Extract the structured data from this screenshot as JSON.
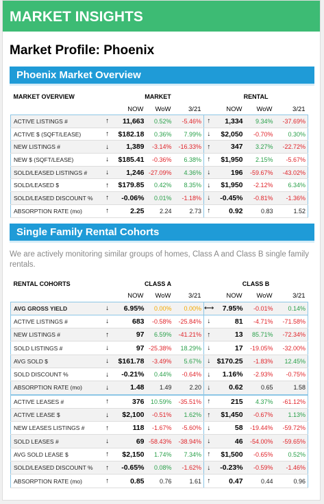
{
  "header": {
    "banner": "MARKET INSIGHTS",
    "title": "Market Profile: Phoenix"
  },
  "overview": {
    "section_title": "Phoenix Market Overview",
    "table_title": "MARKET OVERVIEW",
    "groups": [
      "MARKET",
      "RENTAL"
    ],
    "columns": [
      "NOW",
      "WoW",
      "3/21",
      "NOW",
      "WoW",
      "3/21"
    ],
    "rows": [
      [
        "ACTIVE LISTINGS #",
        "↑",
        "11,663",
        "0.52%",
        "-5.46%",
        "↑",
        "1,334",
        "9.34%",
        "-37.69%"
      ],
      [
        "ACTIVE $ (SQFT/LEASE)",
        "↑",
        "$182.18",
        "0.36%",
        "7.99%",
        "↓",
        "$2,050",
        "-0.70%",
        "0.30%"
      ],
      [
        "NEW LISTINGS #",
        "↓",
        "1,389",
        "-3.14%",
        "-16.33%",
        "↑",
        "347",
        "3.27%",
        "-22.72%"
      ],
      [
        "NEW $ (SQFT/LEASE)",
        "↓",
        "$185.41",
        "-0.36%",
        "6.38%",
        "↑",
        "$1,950",
        "2.15%",
        "-5.67%"
      ],
      [
        "SOLD/LEASED LISTINGS #",
        "↓",
        "1,246",
        "-27.09%",
        "4.36%",
        "↓",
        "196",
        "-59.67%",
        "-43.02%"
      ],
      [
        "SOLD/LEASED $",
        "↑",
        "$179.85",
        "0.42%",
        "8.35%",
        "↓",
        "$1,950",
        "-2.12%",
        "6.34%"
      ],
      [
        "SOLD/LEASED DISCOUNT %",
        "↑",
        "-0.06%",
        "0.01%",
        "-1.18%",
        "↓",
        "-0.45%",
        "-0.81%",
        "-1.36%"
      ],
      [
        "ABSORPTION RATE (mo)",
        "↑",
        "2.25",
        "2.24",
        "2.73",
        "↑",
        "0.92",
        "0.83",
        "1.52"
      ]
    ]
  },
  "cohorts": {
    "section_title": "Single Family Rental Cohorts",
    "intro": "We are actively monitoring similar groups of homes, Class A and Class B single family rentals.",
    "table_title": "RENTAL COHORTS",
    "groups": [
      "CLASS A",
      "CLASS B"
    ],
    "columns": [
      "NOW",
      "WoW",
      "3/21",
      "NOW",
      "WoW",
      "3/21"
    ],
    "rows": [
      [
        "AVG GROSS YIELD",
        "↓",
        "6.95%",
        "0.00%",
        "0.00%",
        "⟷",
        "7.95%",
        "-0.01%",
        "0.14%"
      ],
      [
        "ACTIVE LISTINGS #",
        "↓",
        "683",
        "-0.58%",
        "-25.84%",
        "↓",
        "81",
        "-4.71%",
        "-71.58%"
      ],
      [
        "NEW LISTINGS #",
        "↑",
        "97",
        "6.59%",
        "-41.21%",
        "↑",
        "13",
        "85.71%",
        "-72.34%"
      ],
      [
        "SOLD LISTINGS #",
        "↓",
        "97",
        "-25.38%",
        "18.29%",
        "↓",
        "17",
        "-19.05%",
        "-32.00%"
      ],
      [
        "AVG SOLD $",
        "↓",
        "$161.78",
        "-3.49%",
        "5.67%",
        "↓",
        "$170.25",
        "-1.83%",
        "12.45%"
      ],
      [
        "SOLD DISCOUNT %",
        "↓",
        "-0.21%",
        "0.44%",
        "-0.64%",
        "↓",
        "1.16%",
        "-2.93%",
        "-0.75%"
      ],
      [
        "ABSORPTION RATE (mo)",
        "↓",
        "1.48",
        "1.49",
        "2.20",
        "↓",
        "0.62",
        "0.65",
        "1.58"
      ],
      [
        "ACTIVE LEASES #",
        "↑",
        "376",
        "10.59%",
        "-35.51%",
        "↑",
        "215",
        "4.37%",
        "-61.12%"
      ],
      [
        "ACTIVE LEASE $",
        "↓",
        "$2,100",
        "-0.51%",
        "1.62%",
        "↑",
        "$1,450",
        "-0.67%",
        "1.13%"
      ],
      [
        "NEW LEASES LISTINGS #",
        "↑",
        "118",
        "-1.67%",
        "-5.60%",
        "↓",
        "58",
        "-19.44%",
        "-59.72%"
      ],
      [
        "SOLD LEASES #",
        "↓",
        "69",
        "-58.43%",
        "-38.94%",
        "↓",
        "46",
        "-54.00%",
        "-59.65%"
      ],
      [
        "AVG SOLD LEASE $",
        "↑",
        "$2,150",
        "1.74%",
        "7.34%",
        "↑",
        "$1,500",
        "-0.65%",
        "0.52%"
      ],
      [
        "SOLD/LEASED DISCOUNT %",
        "↑",
        "-0.65%",
        "0.08%",
        "-1.62%",
        "↓",
        "-0.23%",
        "-0.59%",
        "-1.46%"
      ],
      [
        "ABSORPTION RATE (mo)",
        "↑",
        "0.85",
        "0.76",
        "1.61",
        "↑",
        "0.47",
        "0.44",
        "0.96"
      ]
    ]
  }
}
